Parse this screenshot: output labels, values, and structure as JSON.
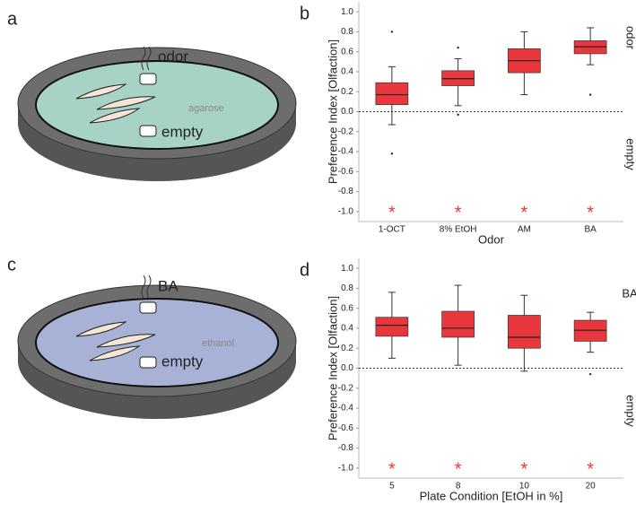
{
  "diagrams": [
    {
      "panel_label": "a",
      "top_label": "odor",
      "medium": "agarose",
      "bottom_label": "empty"
    },
    {
      "panel_label": "c",
      "top_label": "BA",
      "medium": "ethanol",
      "bottom_label": "empty"
    }
  ],
  "chart_data": [
    {
      "type": "box",
      "panel_label": "b",
      "ylabel": "Preference Index [Olfaction]",
      "xlabel": "Odor",
      "side_top_label": "odor",
      "side_bottom_label": "empty",
      "color": "#e8383d",
      "categories": [
        "1-OCT",
        "8% EtOH",
        "AM",
        "BA"
      ],
      "boxes": [
        {
          "low": -0.13,
          "q1": 0.07,
          "median": 0.17,
          "q3": 0.29,
          "high": 0.45,
          "outliers": [
            0.8,
            -0.42
          ]
        },
        {
          "low": 0.06,
          "q1": 0.26,
          "median": 0.33,
          "q3": 0.41,
          "high": 0.53,
          "outliers": [
            0.64,
            -0.03
          ]
        },
        {
          "low": 0.17,
          "q1": 0.39,
          "median": 0.51,
          "q3": 0.63,
          "high": 0.8,
          "outliers": []
        },
        {
          "low": 0.47,
          "q1": 0.58,
          "median": 0.65,
          "q3": 0.71,
          "high": 0.84,
          "outliers": [
            0.17
          ]
        }
      ],
      "significance": [
        "*",
        "*",
        "*",
        "*"
      ],
      "reference_line": 0,
      "ylim": [
        -1.1,
        1.1
      ],
      "yticks": [
        {
          "value": -1,
          "label": "-1.0"
        },
        -0.8,
        -0.6,
        -0.4,
        -0.2,
        {
          "value": 0,
          "label": "0.0"
        },
        0.2,
        0.4,
        0.6,
        0.8,
        {
          "value": 1,
          "label": "1.0"
        }
      ]
    },
    {
      "type": "box",
      "panel_label": "d",
      "ylabel": "Preference Index [Olfaction]",
      "xlabel": "Plate Condition [EtOH in %]",
      "side_top_label": "BA",
      "side_bottom_label": "empty",
      "color": "#e8383d",
      "categories": [
        "5",
        "8",
        "10",
        "20"
      ],
      "boxes": [
        {
          "low": 0.1,
          "q1": 0.32,
          "median": 0.43,
          "q3": 0.51,
          "high": 0.76,
          "outliers": []
        },
        {
          "low": 0.03,
          "q1": 0.31,
          "median": 0.4,
          "q3": 0.57,
          "high": 0.83,
          "outliers": []
        },
        {
          "low": -0.03,
          "q1": 0.2,
          "median": 0.31,
          "q3": 0.53,
          "high": 0.73,
          "outliers": []
        },
        {
          "low": 0.16,
          "q1": 0.27,
          "median": 0.38,
          "q3": 0.48,
          "high": 0.56,
          "outliers": [
            -0.06
          ]
        }
      ],
      "significance": [
        "*",
        "*",
        "*",
        "*"
      ],
      "reference_line": 0,
      "ylim": [
        -1.1,
        1.1
      ],
      "yticks": [
        {
          "value": -1,
          "label": "-1.0"
        },
        -0.8,
        -0.6,
        -0.4,
        -0.2,
        {
          "value": 0,
          "label": "0.0"
        },
        0.2,
        0.4,
        0.6,
        0.8,
        {
          "value": 1,
          "label": "1.0"
        }
      ]
    }
  ]
}
